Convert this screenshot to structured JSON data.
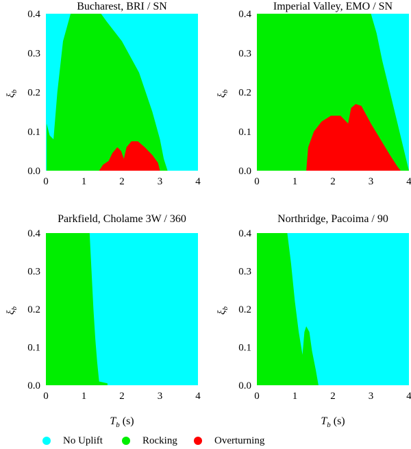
{
  "chart_data": [
    {
      "type": "heatmap",
      "title": "Bucharest, BRI / SN",
      "xlabel": "",
      "ylabel": "ξb",
      "xlim": [
        0,
        4
      ],
      "ylim": [
        0,
        0.4
      ],
      "xticks": [
        "0",
        "1",
        "2",
        "3",
        "4"
      ],
      "yticks": [
        "0.0",
        "0.1",
        "0.2",
        "0.3",
        "0.4"
      ],
      "series": [
        {
          "name": "Rocking",
          "color": "#00ee00",
          "points": [
            [
              0.65,
              0.4
            ],
            [
              1.0,
              0.4
            ],
            [
              1.45,
              0.4
            ],
            [
              1.6,
              0.38
            ],
            [
              2.0,
              0.33
            ],
            [
              2.45,
              0.25
            ],
            [
              2.8,
              0.15
            ],
            [
              3.0,
              0.08
            ],
            [
              3.1,
              0.03
            ],
            [
              3.2,
              0.0
            ],
            [
              0.02,
              0.0
            ],
            [
              0.02,
              0.12
            ],
            [
              0.1,
              0.09
            ],
            [
              0.2,
              0.08
            ],
            [
              0.3,
              0.2
            ],
            [
              0.45,
              0.33
            ]
          ]
        },
        {
          "name": "Overturning",
          "color": "#ff0000",
          "points": [
            [
              1.4,
              0.0
            ],
            [
              1.5,
              0.015
            ],
            [
              1.65,
              0.025
            ],
            [
              1.75,
              0.045
            ],
            [
              1.88,
              0.06
            ],
            [
              1.98,
              0.05
            ],
            [
              2.05,
              0.03
            ],
            [
              2.12,
              0.06
            ],
            [
              2.25,
              0.075
            ],
            [
              2.42,
              0.075
            ],
            [
              2.6,
              0.06
            ],
            [
              2.8,
              0.04
            ],
            [
              2.95,
              0.02
            ],
            [
              3.0,
              0.0
            ]
          ]
        }
      ]
    },
    {
      "type": "heatmap",
      "title": "Imperial Valley, EMO / SN",
      "xlabel": "",
      "ylabel": "ξb",
      "xlim": [
        0,
        4
      ],
      "ylim": [
        0,
        0.4
      ],
      "xticks": [
        "0",
        "1",
        "2",
        "3",
        "4"
      ],
      "yticks": [
        "0.0",
        "0.1",
        "0.2",
        "0.3",
        "0.4"
      ],
      "series": [
        {
          "name": "Rocking",
          "color": "#00ee00",
          "points": [
            [
              0.0,
              0.0
            ],
            [
              0.0,
              0.4
            ],
            [
              3.0,
              0.4
            ],
            [
              3.15,
              0.35
            ],
            [
              3.3,
              0.28
            ],
            [
              3.5,
              0.2
            ],
            [
              3.7,
              0.12
            ],
            [
              3.85,
              0.06
            ],
            [
              3.95,
              0.02
            ],
            [
              4.0,
              0.0
            ]
          ]
        },
        {
          "name": "Overturning",
          "color": "#ff0000",
          "points": [
            [
              1.3,
              0.0
            ],
            [
              1.35,
              0.06
            ],
            [
              1.5,
              0.1
            ],
            [
              1.7,
              0.125
            ],
            [
              1.95,
              0.14
            ],
            [
              2.2,
              0.14
            ],
            [
              2.4,
              0.12
            ],
            [
              2.48,
              0.16
            ],
            [
              2.6,
              0.17
            ],
            [
              2.75,
              0.165
            ],
            [
              3.0,
              0.12
            ],
            [
              3.25,
              0.08
            ],
            [
              3.5,
              0.04
            ],
            [
              3.7,
              0.01
            ],
            [
              3.78,
              0.0
            ]
          ]
        }
      ]
    },
    {
      "type": "heatmap",
      "title": "Parkfield, Cholame 3W / 360",
      "xlabel": "Tb (s)",
      "ylabel": "ξb",
      "xlim": [
        0,
        4
      ],
      "ylim": [
        0,
        0.4
      ],
      "xticks": [
        "0",
        "1",
        "2",
        "3",
        "4"
      ],
      "yticks": [
        "0.0",
        "0.1",
        "0.2",
        "0.3",
        "0.4"
      ],
      "series": [
        {
          "name": "Rocking",
          "color": "#00ee00",
          "points": [
            [
              0.0,
              0.0
            ],
            [
              0.0,
              0.4
            ],
            [
              1.15,
              0.4
            ],
            [
              1.2,
              0.3
            ],
            [
              1.25,
              0.2
            ],
            [
              1.3,
              0.12
            ],
            [
              1.35,
              0.06
            ],
            [
              1.4,
              0.01
            ],
            [
              1.62,
              0.005
            ],
            [
              1.62,
              0.0
            ]
          ]
        }
      ]
    },
    {
      "type": "heatmap",
      "title": "Northridge, Pacoima / 90",
      "xlabel": "Tb (s)",
      "ylabel": "ξb",
      "xlim": [
        0,
        4
      ],
      "ylim": [
        0,
        0.4
      ],
      "xticks": [
        "0",
        "1",
        "2",
        "3",
        "4"
      ],
      "yticks": [
        "0.0",
        "0.1",
        "0.2",
        "0.3",
        "0.4"
      ],
      "series": [
        {
          "name": "Rocking",
          "color": "#00ee00",
          "points": [
            [
              0.0,
              0.0
            ],
            [
              0.0,
              0.4
            ],
            [
              0.8,
              0.4
            ],
            [
              0.9,
              0.32
            ],
            [
              1.0,
              0.22
            ],
            [
              1.1,
              0.14
            ],
            [
              1.2,
              0.08
            ],
            [
              1.25,
              0.14
            ],
            [
              1.3,
              0.155
            ],
            [
              1.38,
              0.14
            ],
            [
              1.45,
              0.09
            ],
            [
              1.55,
              0.04
            ],
            [
              1.62,
              0.0
            ]
          ]
        }
      ]
    }
  ],
  "legend": [
    {
      "label": "No Uplift",
      "color": "#00ffff"
    },
    {
      "label": "Rocking",
      "color": "#00ee00"
    },
    {
      "label": "Overturning",
      "color": "#ff0000"
    }
  ],
  "background_color": "#00ffff"
}
